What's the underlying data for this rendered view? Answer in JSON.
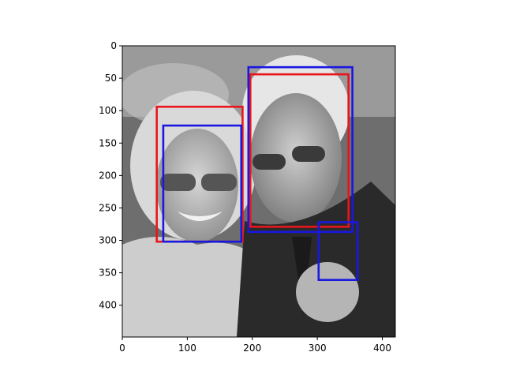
{
  "chart_data": {
    "type": "scatter",
    "title": "",
    "xlabel": "",
    "ylabel": "",
    "xlim": [
      0,
      420
    ],
    "ylim": [
      449,
      0
    ],
    "xticks": [
      0,
      100,
      200,
      300,
      400
    ],
    "yticks": [
      0,
      50,
      100,
      150,
      200,
      250,
      300,
      350,
      400
    ],
    "grid": false,
    "image": {
      "description_tag": "grayscale-photo",
      "extent_data": {
        "x0": 0,
        "x1": 420,
        "y0": 0,
        "y1": 449
      }
    },
    "boxes": [
      {
        "color": "#e8161c",
        "x0": 53,
        "y0": 94,
        "x1": 185,
        "y1": 302
      },
      {
        "color": "#1a17e0",
        "x0": 63,
        "y0": 123,
        "x1": 183,
        "y1": 302
      },
      {
        "color": "#e8161c",
        "x0": 197,
        "y0": 44,
        "x1": 348,
        "y1": 279
      },
      {
        "color": "#1a17e0",
        "x0": 194,
        "y0": 33,
        "x1": 354,
        "y1": 287
      },
      {
        "color": "#1a17e0",
        "x0": 302,
        "y0": 272,
        "x1": 362,
        "y1": 361
      }
    ]
  }
}
